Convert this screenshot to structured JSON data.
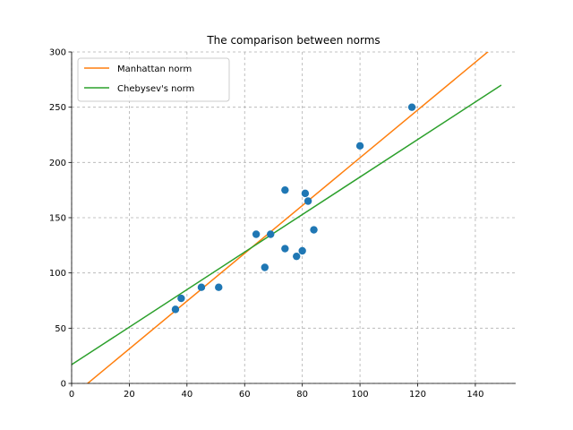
{
  "chart_data": {
    "type": "scatter",
    "title": "The comparison between norms",
    "xlabel": "",
    "ylabel": "",
    "xlim": [
      0,
      154
    ],
    "ylim": [
      0,
      300
    ],
    "xticks": [
      0,
      20,
      40,
      60,
      80,
      100,
      120,
      140
    ],
    "yticks": [
      0,
      50,
      100,
      150,
      200,
      250,
      300
    ],
    "grid": true,
    "legend_position": "top-left",
    "points": {
      "color": "#1f77b4",
      "x": [
        36,
        38,
        45,
        51,
        64,
        67,
        69,
        74,
        74,
        78,
        80,
        81,
        82,
        84,
        100,
        118
      ],
      "y": [
        67,
        77,
        87,
        87,
        135,
        105,
        135,
        175,
        122,
        115,
        120,
        172,
        165,
        139,
        215,
        250
      ]
    },
    "series": [
      {
        "name": "Manhattan norm",
        "type": "line",
        "color": "#ff7f0e",
        "x": [
          0,
          148
        ],
        "y": [
          -12,
          308
        ]
      },
      {
        "name": "Chebysev's norm",
        "type": "line",
        "color": "#2ca02c",
        "x": [
          0,
          149
        ],
        "y": [
          17,
          270
        ]
      }
    ]
  }
}
